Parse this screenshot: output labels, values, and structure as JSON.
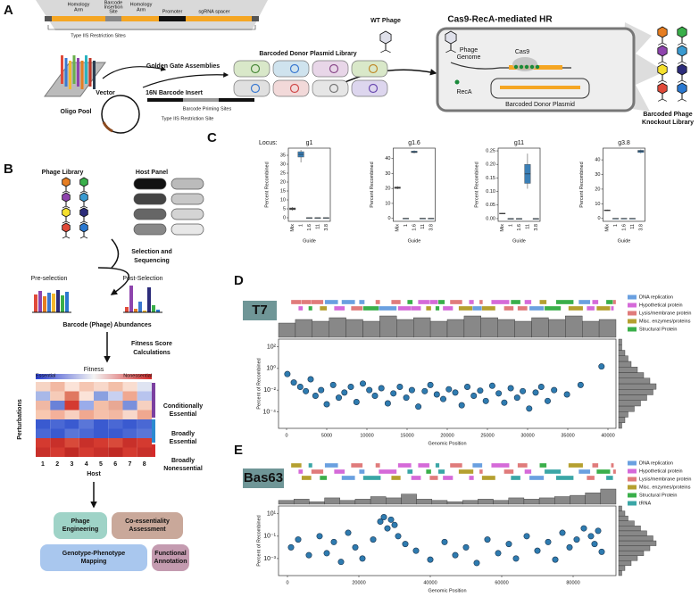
{
  "panel_labels": [
    "A",
    "B",
    "C",
    "D",
    "E"
  ],
  "panel_a": {
    "construct": {
      "homology_arm_1": [
        "Homology",
        "Arm"
      ],
      "barcode_insertion_site": [
        "Barcode",
        "Insertion",
        "Site"
      ],
      "homology_arm_2": [
        "Homology",
        "Arm"
      ],
      "promoter": "Promoter",
      "sgrna_spacer": "sgRNA spacer",
      "restriction_sites": "Type IIS Restriction Sites"
    },
    "oligo_pool": "Oligo Pool",
    "golden_gate": "Golden Gate Assemblies",
    "vector": "Vector",
    "barcode_insert": "16N Barcode Insert",
    "priming_sites": "Barcode Priming Sites",
    "restriction_site": "Type IIS Restriction Site",
    "donor_library": "Barcoded Donor Plasmid Library",
    "wt_phage": "WT Phage",
    "hr_title": "Cas9-RecA-mediated HR",
    "phage_genome": [
      "Phage",
      "Genome"
    ],
    "cas9": "Cas9",
    "reca": "RecA",
    "donor_plasmid": "Barcoded Donor Plasmid",
    "knockout_library": [
      "Barcoded Phage",
      "Knockout Library"
    ]
  },
  "panel_b": {
    "phage_library": "Phage Library",
    "host_panel": "Host Panel",
    "selection": [
      "Selection and",
      "Sequencing"
    ],
    "pre_selection": "Pre-selection",
    "post_selection": "Post-Selection",
    "abundances": "Barcode (Phage) Abundances",
    "fitness_calc": [
      "Fitness Score",
      "Calculations"
    ],
    "fitness": "Fitness",
    "essential": "Essential",
    "nonessential": "Nonessential",
    "perturbations": "Perturbations",
    "groups": [
      [
        "Conditionally",
        "Essential"
      ],
      [
        "Broadly",
        "Essential"
      ],
      [
        "Broadly",
        "Nonessential"
      ]
    ],
    "hosts": [
      "1",
      "2",
      "3",
      "4",
      "5",
      "6",
      "7",
      "8"
    ],
    "host_label": "Host",
    "applications": [
      [
        "Phage",
        "Engineering"
      ],
      [
        "Co-essentiality",
        "Assessment"
      ],
      [
        "Genotype-Phenotype",
        "Mapping"
      ],
      [
        "Functional",
        "Annotation"
      ]
    ]
  },
  "panel_c": {
    "locus_label": "Locus:",
    "charts": [
      {
        "type": "box",
        "title": "g1",
        "ylabel": "Percent Recombined",
        "xlabel": "Guide",
        "color": "#3b7fb6",
        "categories": [
          "Mix",
          "1",
          "1.6",
          "11",
          "3.8"
        ],
        "ylim": [
          -2,
          39
        ],
        "yticks": [
          0,
          5,
          10,
          15,
          20,
          25,
          30,
          35
        ],
        "boxes": [
          {
            "min": 4,
            "q1": 4.5,
            "median": 5,
            "q3": 5.5,
            "max": 6
          },
          {
            "min": 31,
            "q1": 34,
            "median": 35.5,
            "q3": 37,
            "max": 38
          },
          {
            "min": 0,
            "q1": 0,
            "median": 0,
            "q3": 0,
            "max": 0
          },
          {
            "min": 0,
            "q1": 0,
            "median": 0,
            "q3": 0,
            "max": 0
          },
          {
            "min": 0,
            "q1": 0,
            "median": 0,
            "q3": 0,
            "max": 0
          }
        ]
      },
      {
        "type": "box",
        "title": "g1.6",
        "ylabel": "Percent Recombined",
        "xlabel": "Guide",
        "color": "#3b7fb6",
        "categories": [
          "Mix",
          "1",
          "1.6",
          "11",
          "3.8"
        ],
        "ylim": [
          -2,
          47
        ],
        "yticks": [
          0,
          10,
          20,
          30,
          40
        ],
        "boxes": [
          {
            "min": 19.5,
            "q1": 20,
            "median": 20.5,
            "q3": 21,
            "max": 21.5
          },
          {
            "min": 0,
            "q1": 0,
            "median": 0,
            "q3": 0,
            "max": 0
          },
          {
            "min": 43.5,
            "q1": 44,
            "median": 44.5,
            "q3": 45,
            "max": 45.5
          },
          {
            "min": 0,
            "q1": 0,
            "median": 0,
            "q3": 0,
            "max": 0
          },
          {
            "min": 0,
            "q1": 0,
            "median": 0,
            "q3": 0,
            "max": 0
          }
        ]
      },
      {
        "type": "box",
        "title": "g11",
        "ylabel": "Percent Recombined",
        "xlabel": "Guide",
        "color": "#3b7fb6",
        "categories": [
          "Mix",
          "1",
          "1.6",
          "11",
          "3.8"
        ],
        "ylim": [
          -0.01,
          0.26
        ],
        "yticks": [
          {
            "value": 0,
            "label": "0.00"
          },
          0.05,
          {
            "value": 0.1,
            "label": "0.10"
          },
          0.15,
          {
            "value": 0.2,
            "label": "0.20"
          },
          0.25
        ],
        "boxes": [
          {
            "min": 0.017,
            "q1": 0.018,
            "median": 0.019,
            "q3": 0.02,
            "max": 0.021
          },
          {
            "min": 0,
            "q1": 0,
            "median": 0,
            "q3": 0,
            "max": 0
          },
          {
            "min": 0,
            "q1": 0,
            "median": 0,
            "q3": 0,
            "max": 0
          },
          {
            "min": 0.11,
            "q1": 0.13,
            "median": 0.165,
            "q3": 0.2,
            "max": 0.24
          },
          {
            "min": 0,
            "q1": 0,
            "median": 0,
            "q3": 0,
            "max": 0
          }
        ]
      },
      {
        "type": "box",
        "title": "g3.8",
        "ylabel": "Percent Recombined",
        "xlabel": "Guide",
        "color": "#3b7fb6",
        "categories": [
          "Mix",
          "1",
          "1.6",
          "11",
          "3.8"
        ],
        "ylim": [
          -2,
          48
        ],
        "yticks": [
          0,
          10,
          20,
          30,
          40
        ],
        "boxes": [
          {
            "min": 5,
            "q1": 5.2,
            "median": 5.5,
            "q3": 5.8,
            "max": 6
          },
          {
            "min": 0,
            "q1": 0,
            "median": 0,
            "q3": 0,
            "max": 0
          },
          {
            "min": 0,
            "q1": 0,
            "median": 0,
            "q3": 0,
            "max": 0
          },
          {
            "min": 0,
            "q1": 0,
            "median": 0,
            "q3": 0,
            "max": 0
          },
          {
            "min": 44.5,
            "q1": 45,
            "median": 46,
            "q3": 46.5,
            "max": 47
          }
        ]
      }
    ]
  },
  "panel_d": {
    "phage": "T7",
    "legend": [
      {
        "name": "DNA replication",
        "color": "#6aa0e0"
      },
      {
        "name": "Hypothetical protein",
        "color": "#d56ad9"
      },
      {
        "name": "Lysis/membrane protein",
        "color": "#e07b7b"
      },
      {
        "name": "Misc. enzymes/proteins",
        "color": "#b5a030"
      },
      {
        "name": "Structural Protein",
        "color": "#3aaf4a"
      }
    ],
    "chart": {
      "type": "scatter",
      "ylabel": "Percent of Recombined",
      "xlabel": "Genomic Position",
      "color": "#2e7bb0",
      "log_y": true,
      "xlim": [
        -1000,
        41000
      ],
      "xticks": [
        0,
        5000,
        10000,
        15000,
        20000,
        25000,
        30000,
        35000,
        40000
      ],
      "ylim": [
        3e-06,
        500
      ],
      "yticks": [
        {
          "value": 0.0001,
          "label": "10⁻⁴"
        },
        {
          "value": 0.01,
          "label": "10⁻²"
        },
        {
          "value": 1,
          "label": "10⁰"
        },
        {
          "value": 100,
          "label": "10²"
        }
      ],
      "x": [
        100,
        900,
        1700,
        2400,
        3000,
        3600,
        4300,
        5000,
        5800,
        6500,
        7200,
        8000,
        8700,
        9500,
        10300,
        11000,
        11800,
        12600,
        13300,
        14100,
        14900,
        15600,
        16400,
        17200,
        17900,
        18700,
        19500,
        20200,
        21000,
        21800,
        22500,
        23300,
        24100,
        24800,
        25600,
        26400,
        27100,
        27900,
        28700,
        29400,
        30200,
        31000,
        31700,
        32500,
        33300,
        34900,
        36600,
        39200
      ],
      "y": [
        0.3,
        0.05,
        0.02,
        0.008,
        0.1,
        0.003,
        0.01,
        0.0005,
        0.03,
        0.002,
        0.006,
        0.02,
        0.0008,
        0.04,
        0.01,
        0.003,
        0.015,
        0.0006,
        0.005,
        0.02,
        0.002,
        0.01,
        0.0003,
        0.008,
        0.03,
        0.004,
        0.0015,
        0.012,
        0.006,
        0.0004,
        0.02,
        0.003,
        0.009,
        0.001,
        0.025,
        0.005,
        0.0007,
        0.015,
        0.002,
        0.008,
        0.0002,
        0.006,
        0.02,
        0.001,
        0.01,
        0.004,
        0.03,
        1.5
      ],
      "top_histogram": [
        8,
        10,
        9,
        11,
        10,
        9,
        12,
        10,
        11,
        9,
        10,
        12,
        11,
        10,
        9,
        11,
        10,
        12,
        9,
        10
      ],
      "right_histogram": [
        1,
        2,
        3,
        5,
        7,
        9,
        11,
        12,
        10,
        8,
        6,
        4,
        3,
        2,
        1,
        1
      ]
    }
  },
  "panel_e": {
    "phage": "Bas63",
    "legend": [
      {
        "name": "DNA replication",
        "color": "#6aa0e0"
      },
      {
        "name": "Hypothetical protein",
        "color": "#d56ad9"
      },
      {
        "name": "Lysis/membrane protein",
        "color": "#e07b7b"
      },
      {
        "name": "Misc. enzymes/proteins",
        "color": "#b5a030"
      },
      {
        "name": "Structural Protein",
        "color": "#3aaf4a"
      },
      {
        "name": "tRNA",
        "color": "#3aa6a6"
      }
    ],
    "chart": {
      "type": "scatter",
      "ylabel": "Percent of Recombined",
      "xlabel": "Genomic Position",
      "color": "#2e7bb0",
      "log_y": true,
      "xlim": [
        -2500,
        92000
      ],
      "xticks": [
        0,
        20000,
        40000,
        60000,
        80000
      ],
      "ylim": [
        3e-05,
        50
      ],
      "yticks": [
        {
          "value": 0.001,
          "label": "10⁻³"
        },
        {
          "value": 0.1,
          "label": "10⁻¹"
        },
        {
          "value": 10,
          "label": "10¹"
        }
      ],
      "x": [
        1000,
        3000,
        6000,
        9000,
        11000,
        13000,
        15000,
        17000,
        19000,
        21000,
        24000,
        26000,
        27000,
        28000,
        29000,
        30000,
        31000,
        33000,
        36000,
        40000,
        44000,
        47000,
        50000,
        53000,
        56000,
        59000,
        62000,
        64000,
        67000,
        70000,
        73000,
        75000,
        77000,
        79000,
        81000,
        83000,
        85000,
        86000,
        87000,
        88000
      ],
      "y": [
        0.01,
        0.05,
        0.002,
        0.1,
        0.003,
        0.03,
        0.0005,
        0.2,
        0.01,
        0.001,
        0.05,
        2,
        5,
        0.5,
        3,
        1,
        0.1,
        0.02,
        0.005,
        0.0008,
        0.03,
        0.002,
        0.01,
        0.0004,
        0.05,
        0.003,
        0.02,
        0.001,
        0.1,
        0.005,
        0.03,
        0.0008,
        0.2,
        0.01,
        0.05,
        0.5,
        0.1,
        0.02,
        0.3,
        0.004
      ],
      "top_histogram": [
        3,
        4,
        2,
        5,
        3,
        4,
        6,
        5,
        8,
        4,
        3,
        2,
        3,
        4,
        3,
        5,
        4,
        5,
        6,
        7,
        9,
        12
      ],
      "right_histogram": [
        1,
        2,
        4,
        6,
        8,
        10,
        12,
        11,
        9,
        7,
        5,
        3,
        2,
        1
      ]
    }
  }
}
